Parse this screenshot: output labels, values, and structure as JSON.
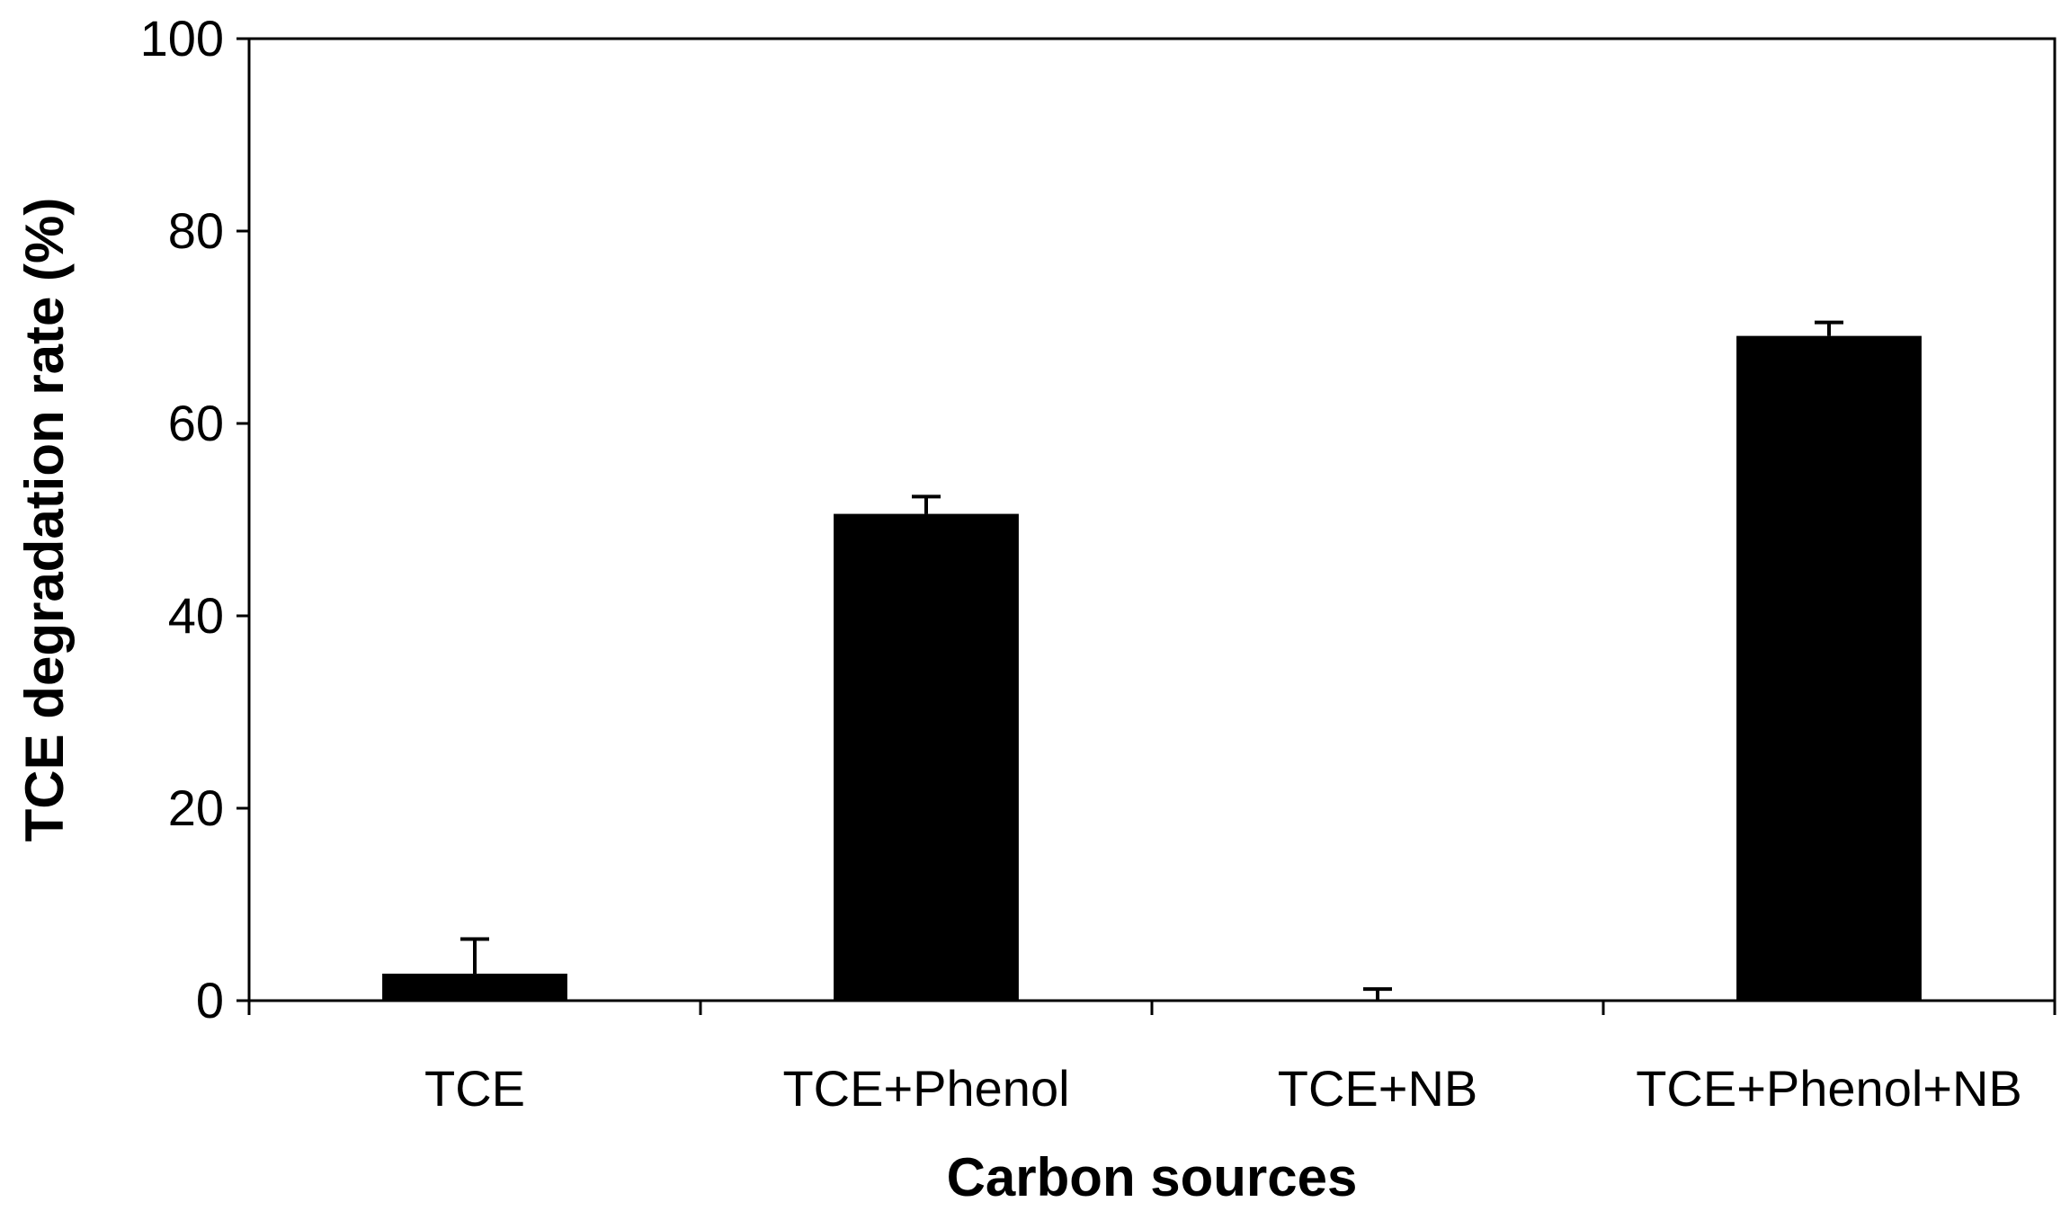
{
  "chart_data": {
    "type": "bar",
    "title": "",
    "xlabel": "Carbon sources",
    "ylabel": "TCE degradation rate (%)",
    "categories": [
      "TCE",
      "TCE+Phenol",
      "TCE+NB",
      "TCE+Phenol+NB"
    ],
    "values": [
      2.8,
      50.6,
      0.1,
      69.1
    ],
    "error_bars": [
      3.6,
      1.8,
      1.1,
      1.4
    ],
    "ylim": [
      0,
      100
    ],
    "yticks": [
      "0",
      "20",
      "40",
      "60",
      "80",
      "100"
    ],
    "grid": false,
    "legend": "none",
    "bar_color": "#000000"
  }
}
